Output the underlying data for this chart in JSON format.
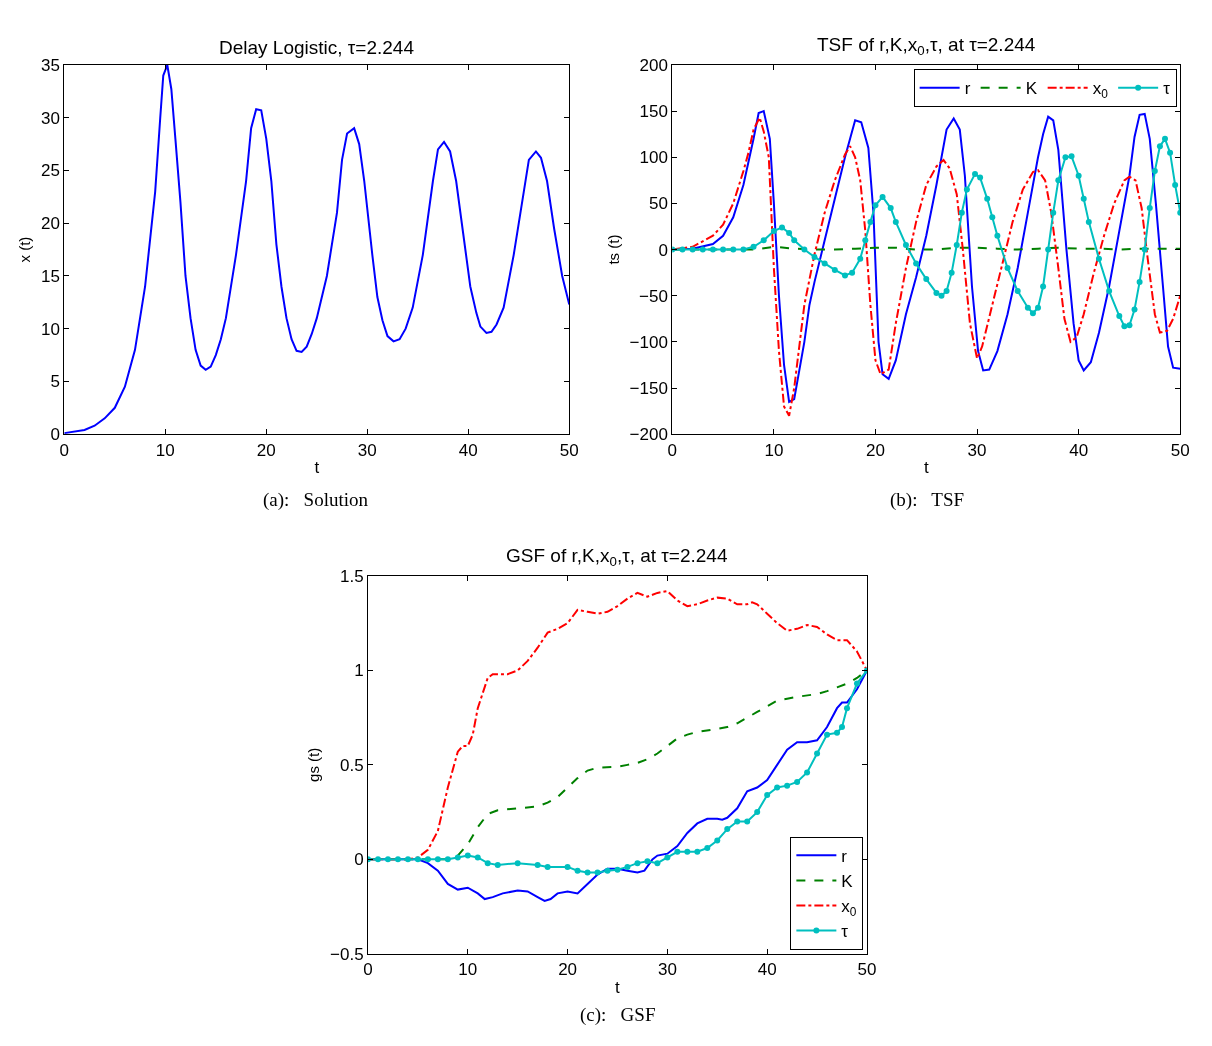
{
  "chart_data": [
    {
      "type": "line",
      "title": "Delay Logistic, τ=2.244",
      "xlabel": "t",
      "ylabel": "x (t)",
      "annotations": [
        "(a):   Solution"
      ],
      "xlim": [
        0,
        50
      ],
      "ylim": [
        0,
        35
      ],
      "xticks": [
        0,
        10,
        20,
        30,
        40,
        50
      ],
      "yticks": [
        0,
        5,
        10,
        15,
        20,
        25,
        30,
        35
      ],
      "legend": false,
      "series": [
        {
          "color": "#0000ff",
          "line_style": "solid",
          "x": [
            0,
            2,
            3,
            4,
            5,
            6,
            7,
            8,
            9,
            9.5,
            9.8,
            10.2,
            10.6,
            11,
            11.5,
            12,
            12.5,
            13,
            13.5,
            14,
            14.5,
            15,
            15.5,
            16,
            17,
            18,
            18.5,
            19,
            19.5,
            20,
            20.5,
            21,
            21.5,
            22,
            22.5,
            23,
            23.5,
            24,
            24.5,
            25,
            26,
            27,
            27.5,
            28,
            28.7,
            29.2,
            29.7,
            30.5,
            31,
            31.5,
            32,
            32.6,
            33.2,
            33.8,
            34.5,
            35.5,
            36.5,
            37,
            37.6,
            38.2,
            38.8,
            39.5,
            40.2,
            40.8,
            41.2,
            41.8,
            42.3,
            42.8,
            43.5,
            44.5,
            45.5,
            46,
            46.7,
            47.2,
            47.8,
            48.5,
            49.3,
            50
          ],
          "values": [
            0.1,
            0.4,
            0.8,
            1.5,
            2.5,
            4.5,
            8,
            14,
            23,
            30,
            34,
            35,
            32.7,
            28,
            22,
            15,
            11,
            8,
            6.5,
            6.1,
            6.4,
            7.5,
            9,
            11,
            17,
            24,
            29,
            30.8,
            30.7,
            28,
            24,
            18,
            14,
            11,
            9,
            7.9,
            7.8,
            8.3,
            9.5,
            11,
            15,
            21,
            26,
            28.5,
            29,
            27.5,
            24,
            17,
            13,
            10.8,
            9.3,
            8.8,
            9,
            10,
            12,
            17,
            24,
            27,
            27.7,
            26.8,
            24,
            19,
            14,
            11.5,
            10.2,
            9.6,
            9.7,
            10.4,
            12,
            17,
            23,
            26,
            26.8,
            26.2,
            24,
            19.5,
            15,
            12.3
          ]
        }
      ]
    },
    {
      "type": "line",
      "title": "TSF of r,K,x$_{0}$,τ, at τ=2.244",
      "xlabel": "t",
      "ylabel": "ts (t)",
      "annotations": [
        "(b):   TSF"
      ],
      "xlim": [
        0,
        50
      ],
      "ylim": [
        -200,
        200
      ],
      "xticks": [
        0,
        10,
        20,
        30,
        40,
        50
      ],
      "yticks": [
        -200,
        -150,
        -100,
        -50,
        0,
        50,
        100,
        150,
        200
      ],
      "legend": "top right",
      "series": [
        {
          "name": "r",
          "color": "#0000ff",
          "line_style": "solid",
          "x": [
            0,
            2,
            4,
            5,
            6,
            7,
            8,
            8.5,
            9,
            9.6,
            10,
            10.5,
            11,
            11.5,
            12,
            13,
            13.5,
            14,
            15,
            16,
            17,
            17.5,
            18,
            18.6,
            19.3,
            19.8,
            20.3,
            20.7,
            21.3,
            22,
            23,
            24,
            25,
            26,
            27,
            27.7,
            28.3,
            28.8,
            29.5,
            30.1,
            30.6,
            31.2,
            32,
            33,
            34,
            35,
            36,
            36.5,
            37,
            37.5,
            38,
            38.8,
            39.5,
            40,
            40.5,
            41.2,
            42,
            43,
            44,
            45,
            45.5,
            46,
            46.5,
            47,
            47.6,
            48.3,
            48.8,
            49.3,
            50
          ],
          "values": [
            0,
            1,
            6,
            15,
            35,
            70,
            120,
            148,
            150,
            120,
            50,
            -50,
            -125,
            -165,
            -162,
            -100,
            -60,
            -35,
            10,
            55,
            100,
            120,
            140,
            138,
            110,
            40,
            -100,
            -135,
            -140,
            -120,
            -70,
            -30,
            15,
            70,
            130,
            142,
            130,
            80,
            -40,
            -110,
            -131,
            -130,
            -110,
            -70,
            -20,
            40,
            100,
            125,
            144,
            140,
            108,
            0,
            -80,
            -120,
            -131,
            -122,
            -90,
            -40,
            20,
            80,
            122,
            146,
            147,
            120,
            50,
            -40,
            -105,
            -128,
            -129
          ]
        },
        {
          "name": "K",
          "color": "#008000",
          "line_style": "dashed",
          "x": [
            0,
            8,
            10,
            12,
            14,
            16,
            18,
            20,
            22,
            24,
            26,
            28,
            30,
            32,
            34,
            36,
            38,
            40,
            42,
            44,
            46,
            48,
            50
          ],
          "values": [
            0,
            0,
            3,
            1,
            0,
            0,
            1,
            2,
            2,
            0,
            0,
            2,
            2,
            1,
            0,
            1,
            2,
            1,
            1,
            0,
            1,
            1,
            1
          ]
        },
        {
          "name": "x$_{0}$",
          "color": "#ff0000",
          "line_style": "dashdot",
          "x": [
            0,
            2,
            4,
            5,
            6,
            7,
            7.5,
            8,
            8.6,
            9,
            9.5,
            10,
            10.5,
            11,
            11.5,
            12,
            13,
            14,
            15,
            16,
            17,
            17.5,
            18,
            18.5,
            19,
            19.5,
            20,
            20.5,
            21.3,
            22,
            23,
            24,
            25,
            26,
            26.7,
            27.3,
            28,
            28.6,
            29.3,
            30,
            30.5,
            31.5,
            32.5,
            33.5,
            34.5,
            35.5,
            36,
            36.7,
            37.3,
            38,
            38.6,
            39.2,
            39.8,
            40.5,
            41.5,
            42.5,
            43.5,
            44.5,
            45,
            45.6,
            46.2,
            46.8,
            47.5,
            48,
            48.7,
            49.3,
            50
          ],
          "values": [
            0,
            3,
            15,
            27,
            50,
            85,
            105,
            130,
            143,
            128,
            100,
            -20,
            -110,
            -170,
            -180,
            -150,
            -60,
            -5,
            40,
            75,
            103,
            112,
            100,
            75,
            20,
            -60,
            -120,
            -135,
            -130,
            -80,
            -20,
            30,
            70,
            90,
            97,
            88,
            60,
            0,
            -80,
            -118,
            -105,
            -60,
            -15,
            30,
            65,
            84,
            86,
            75,
            40,
            -20,
            -75,
            -100,
            -95,
            -70,
            -25,
            15,
            50,
            75,
            79,
            75,
            45,
            -10,
            -70,
            -90,
            -88,
            -75,
            -50
          ]
        },
        {
          "name": "τ",
          "color": "#00bfbf",
          "line_style": "solid",
          "marker": "circle",
          "x": [
            0,
            1,
            2,
            3,
            4,
            5,
            6,
            7,
            8,
            9,
            10,
            10.8,
            11.5,
            12,
            13,
            14,
            15,
            16,
            17,
            17.7,
            18.5,
            19,
            19.5,
            20,
            20.7,
            21.5,
            22,
            23,
            24,
            25,
            26,
            26.5,
            27,
            27.5,
            28,
            28.5,
            29,
            29.8,
            30.3,
            31,
            31.5,
            32,
            33,
            34,
            35,
            35.5,
            36,
            36.5,
            37,
            37.5,
            38,
            38.7,
            39.3,
            40,
            40.5,
            41,
            42,
            43,
            44,
            44.5,
            45,
            45.5,
            46,
            46.5,
            47,
            47.5,
            48,
            48.5,
            49,
            49.5,
            50
          ],
          "values": [
            0,
            0,
            0,
            0,
            0,
            0,
            0,
            0,
            3,
            10,
            20,
            24,
            18,
            10,
            0,
            -8,
            -15,
            -22,
            -28,
            -25,
            -10,
            10,
            30,
            48,
            57,
            45,
            30,
            5,
            -15,
            -32,
            -47,
            -50,
            -45,
            -25,
            5,
            40,
            65,
            82,
            78,
            55,
            35,
            15,
            -20,
            -45,
            -63,
            -69,
            -63,
            -40,
            0,
            40,
            75,
            100,
            101,
            80,
            55,
            30,
            -10,
            -45,
            -72,
            -83,
            -82,
            -65,
            -35,
            0,
            45,
            85,
            112,
            120,
            105,
            70,
            40
          ]
        }
      ]
    },
    {
      "type": "line",
      "title": "GSF of r,K,x$_{0}$,τ, at τ=2.244",
      "xlabel": "t",
      "ylabel": "gs (t)",
      "annotations": [
        "(c):   GSF"
      ],
      "xlim": [
        0,
        50
      ],
      "ylim": [
        -0.5,
        1.5
      ],
      "xticks": [
        0,
        10,
        20,
        30,
        40,
        50
      ],
      "yticks": [
        -0.5,
        0,
        0.5,
        1,
        1.5
      ],
      "legend": "bottom right",
      "series": [
        {
          "name": "r",
          "color": "#0000ff",
          "line_style": "solid",
          "x": [
            0,
            5,
            6,
            7,
            8,
            9,
            10,
            11,
            11.7,
            12.5,
            13.5,
            15,
            16,
            17,
            17.7,
            18.3,
            19,
            20,
            21,
            22,
            23,
            24,
            25,
            26,
            27,
            27.7,
            28.5,
            29,
            30,
            31,
            32,
            33,
            34,
            35,
            35.5,
            36,
            37,
            38,
            39,
            40,
            41,
            42,
            43,
            44,
            45,
            46,
            47,
            47.5,
            48,
            49,
            50
          ],
          "values": [
            0,
            0,
            -0.02,
            -0.06,
            -0.13,
            -0.16,
            -0.15,
            -0.18,
            -0.21,
            -0.2,
            -0.18,
            -0.165,
            -0.17,
            -0.2,
            -0.22,
            -0.21,
            -0.18,
            -0.17,
            -0.18,
            -0.13,
            -0.08,
            -0.05,
            -0.05,
            -0.06,
            -0.07,
            -0.06,
            0,
            0.02,
            0.03,
            0.07,
            0.14,
            0.19,
            0.215,
            0.215,
            0.21,
            0.22,
            0.27,
            0.36,
            0.38,
            0.42,
            0.5,
            0.58,
            0.62,
            0.62,
            0.63,
            0.7,
            0.8,
            0.83,
            0.83,
            0.9,
            1
          ]
        },
        {
          "name": "K",
          "color": "#008000",
          "line_style": "dashed",
          "x": [
            0,
            8,
            9,
            10,
            11,
            12,
            13,
            15,
            17,
            18,
            19,
            20,
            21,
            22,
            23,
            25,
            26,
            27,
            28,
            29,
            30,
            31,
            32,
            33,
            35,
            36,
            37,
            38,
            39,
            40,
            41,
            42,
            43,
            45,
            46,
            47,
            48,
            49,
            50
          ],
          "values": [
            0,
            0,
            0.02,
            0.08,
            0.17,
            0.24,
            0.26,
            0.27,
            0.28,
            0.3,
            0.33,
            0.38,
            0.43,
            0.47,
            0.485,
            0.49,
            0.5,
            0.51,
            0.53,
            0.56,
            0.6,
            0.64,
            0.66,
            0.675,
            0.69,
            0.7,
            0.72,
            0.75,
            0.78,
            0.81,
            0.84,
            0.85,
            0.86,
            0.875,
            0.89,
            0.91,
            0.93,
            0.96,
            1
          ]
        },
        {
          "name": "x$_{0}$",
          "color": "#ff0000",
          "line_style": "dashdot",
          "x": [
            0,
            4,
            5,
            6,
            7,
            8,
            9,
            9.5,
            10,
            10.5,
            11,
            12,
            12.5,
            14,
            15,
            16,
            17,
            18,
            19,
            20,
            21,
            22,
            23,
            24,
            25,
            26,
            27,
            28,
            29,
            30,
            31,
            32,
            33,
            34,
            35,
            36,
            37,
            38,
            38.5,
            39,
            40,
            41,
            42,
            43,
            44,
            45,
            46,
            47,
            48,
            49,
            50
          ],
          "values": [
            0,
            0,
            0.01,
            0.05,
            0.15,
            0.38,
            0.57,
            0.6,
            0.6,
            0.66,
            0.8,
            0.96,
            0.98,
            0.98,
            1.0,
            1.05,
            1.12,
            1.2,
            1.22,
            1.25,
            1.32,
            1.31,
            1.3,
            1.31,
            1.34,
            1.38,
            1.41,
            1.39,
            1.41,
            1.42,
            1.37,
            1.34,
            1.35,
            1.37,
            1.385,
            1.38,
            1.35,
            1.35,
            1.36,
            1.35,
            1.3,
            1.25,
            1.21,
            1.22,
            1.24,
            1.23,
            1.19,
            1.16,
            1.16,
            1.1,
            1.0
          ]
        },
        {
          "name": "τ",
          "color": "#00bfbf",
          "line_style": "solid",
          "marker": "circle",
          "x": [
            0,
            1,
            2,
            3,
            4,
            5,
            6,
            7,
            8,
            9,
            10,
            11,
            12,
            13,
            15,
            17,
            18,
            20,
            21,
            22,
            23,
            24,
            25,
            26,
            27,
            28,
            29,
            30,
            31,
            32,
            33,
            34,
            35,
            36,
            37,
            38,
            39,
            40,
            41,
            42,
            43,
            44,
            45,
            46,
            47,
            47.5,
            48,
            49,
            50
          ],
          "values": [
            0,
            0,
            0,
            0,
            0,
            0,
            0,
            0,
            0,
            0.01,
            0.02,
            0.01,
            -0.02,
            -0.03,
            -0.02,
            -0.03,
            -0.04,
            -0.04,
            -0.06,
            -0.07,
            -0.07,
            -0.06,
            -0.055,
            -0.04,
            -0.02,
            -0.01,
            -0.02,
            0.01,
            0.04,
            0.04,
            0.04,
            0.06,
            0.1,
            0.16,
            0.2,
            0.2,
            0.25,
            0.34,
            0.38,
            0.39,
            0.41,
            0.46,
            0.56,
            0.66,
            0.67,
            0.7,
            0.8,
            0.93,
            1
          ]
        }
      ]
    }
  ]
}
